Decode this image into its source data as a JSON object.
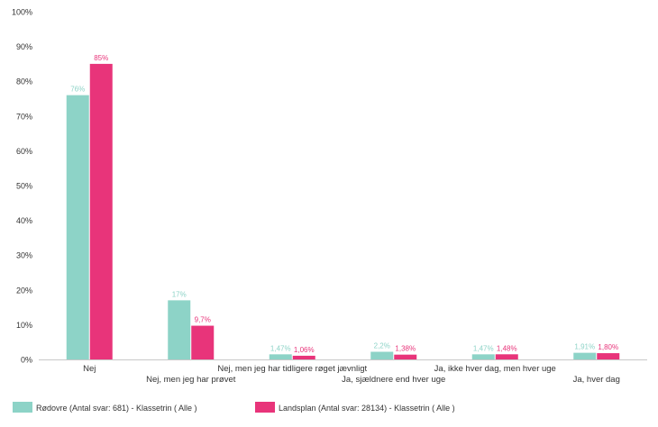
{
  "chart_data": {
    "type": "bar",
    "categories": [
      "Nej",
      "Nej, men jeg har prøvet",
      "Nej, men jeg har tidligere røget jævnligt",
      "Ja, sjældnere end hver uge",
      "Ja, ikke hver dag, men hver uge",
      "Ja, hver dag"
    ],
    "series": [
      {
        "name": "Rødovre (Antal svar: 681)  - Klassetrin ( Alle )",
        "color": "#8dd3c7",
        "values": [
          76,
          17,
          1.47,
          2.2,
          1.47,
          1.91
        ],
        "labels": [
          "76%",
          "17%",
          "1,47%",
          "2,2%",
          "1,47%",
          "1,91%"
        ]
      },
      {
        "name": "Landsplan (Antal svar: 28134)  - Klassetrin ( Alle )",
        "color": "#e8347a",
        "values": [
          85,
          9.7,
          1.06,
          1.38,
          1.48,
          1.8
        ],
        "labels": [
          "85%",
          "9,7%",
          "1,06%",
          "1,38%",
          "1,48%",
          "1,80%"
        ]
      }
    ],
    "yticks": [
      "0%",
      "10%",
      "20%",
      "30%",
      "40%",
      "50%",
      "60%",
      "70%",
      "80%",
      "90%",
      "100%"
    ],
    "ylim": [
      0,
      100
    ],
    "grid": false,
    "legend": "bottom-left",
    "title": "",
    "xlabel": "",
    "ylabel": ""
  }
}
